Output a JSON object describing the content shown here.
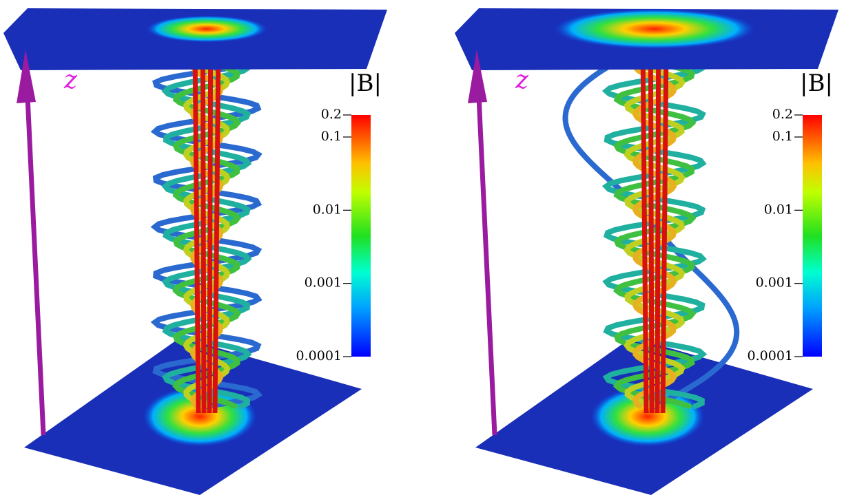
{
  "panels": [
    {
      "axis_label": "z",
      "colorbar": {
        "title": "|B|",
        "lim": [
          0.2,
          0.0001
        ],
        "ticks": [
          0.2,
          0.1,
          0.01,
          0.001,
          0.0001
        ],
        "log": true
      }
    },
    {
      "axis_label": "z",
      "colorbar": {
        "title": "|B|",
        "lim": [
          0.2,
          0.0001
        ],
        "ticks": [
          0.2,
          0.1,
          0.01,
          0.001,
          0.0001
        ],
        "log": true
      }
    }
  ]
}
